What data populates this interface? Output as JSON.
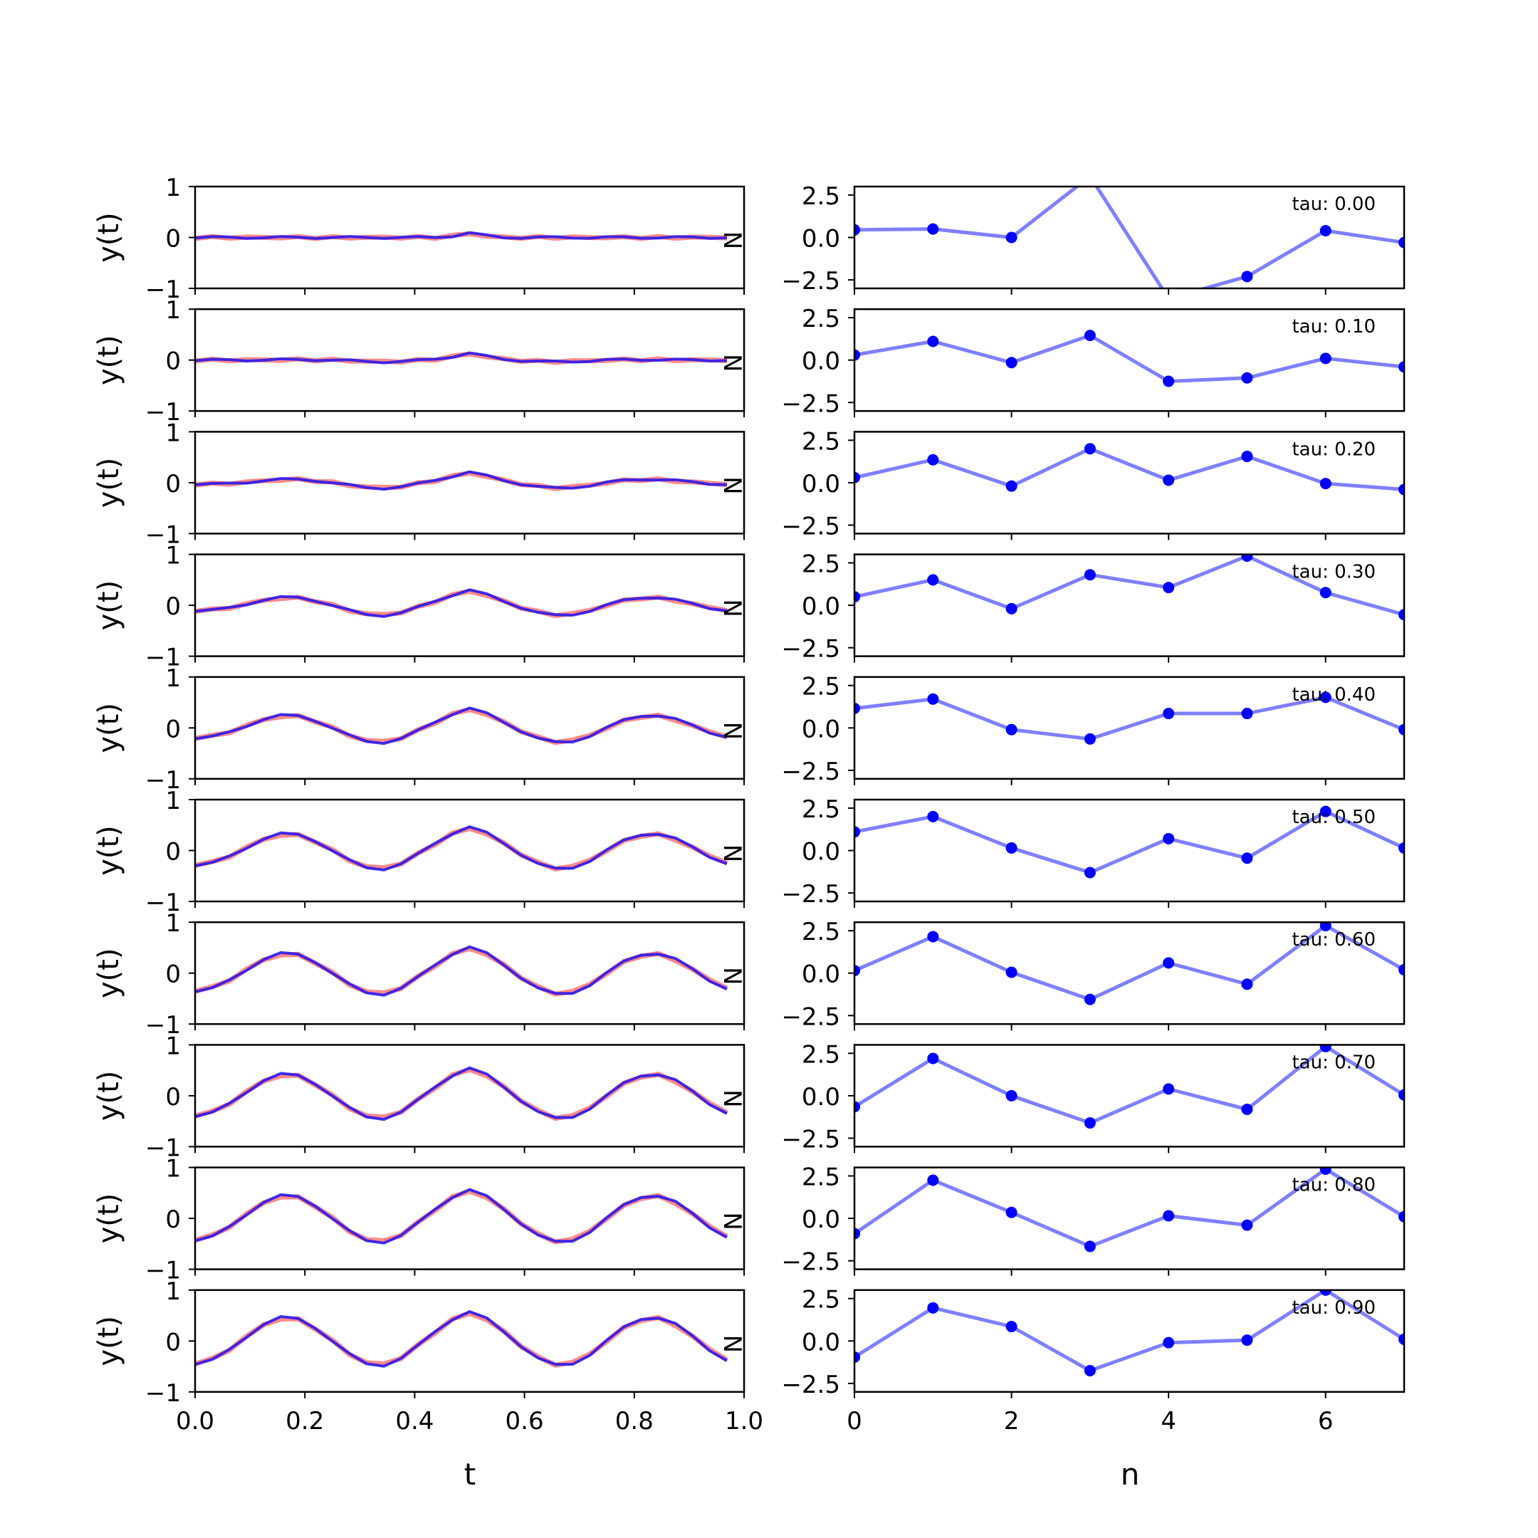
{
  "colors": {
    "red": "#ff7777",
    "blue": "#0000ff",
    "purple": "#7a0f9b",
    "points": "#0000ff",
    "points_line": "#7f7fff"
  },
  "left_column": {
    "xlabel": "t",
    "ylabel": "y(t)",
    "ytick_labels": [
      "1",
      "0",
      "−1"
    ],
    "xtick_labels": [
      "0.0",
      "0.2",
      "0.4",
      "0.6",
      "0.8",
      "1.0"
    ],
    "end_label": "N"
  },
  "right_column": {
    "xlabel": "n",
    "ytick_labels": [
      "2.5",
      "0.0",
      "−2.5"
    ],
    "xtick_labels": [
      "0",
      "2",
      "4",
      "6"
    ]
  },
  "chart_data": [
    {
      "type": "line",
      "panel": "signal",
      "xlim": [
        0,
        1
      ],
      "ylim": [
        -1,
        1
      ],
      "xticks": [
        0,
        0.2,
        0.4,
        0.6,
        0.8,
        1.0
      ],
      "yticks": [
        1,
        0,
        -1
      ],
      "x": [
        0,
        0.0312,
        0.0625,
        0.0938,
        0.125,
        0.1562,
        0.1875,
        0.2188,
        0.25,
        0.2812,
        0.3125,
        0.3438,
        0.375,
        0.4062,
        0.4375,
        0.4688,
        0.5,
        0.5312,
        0.5625,
        0.5938,
        0.625,
        0.6562,
        0.6875,
        0.7188,
        0.75,
        0.7812,
        0.8125,
        0.8438,
        0.875,
        0.9062,
        0.9375,
        0.9688
      ],
      "series": [
        {
          "role": "red",
          "taus": [
            0.0,
            0.1,
            0.2,
            0.3,
            0.4,
            0.5,
            0.6,
            0.7,
            0.8,
            0.9
          ],
          "amplitudes": [
            0.0,
            0.09,
            0.18,
            0.26,
            0.31,
            0.36,
            0.41,
            0.44,
            0.46,
            0.47
          ]
        },
        {
          "role": "blue",
          "taus": [
            0.0,
            0.1,
            0.2,
            0.3,
            0.4,
            0.5,
            0.6,
            0.7,
            0.8,
            0.9
          ],
          "amplitudes": [
            0.02,
            0.11,
            0.2,
            0.28,
            0.33,
            0.38,
            0.43,
            0.46,
            0.48,
            0.49
          ]
        }
      ]
    },
    {
      "type": "line",
      "panel": "coefficients",
      "x": [
        0,
        1,
        2,
        3,
        4,
        5,
        6,
        7
      ],
      "xlim": [
        0,
        7
      ],
      "ylim": [
        -3,
        3
      ],
      "xticks": [
        0,
        2,
        4,
        6
      ],
      "yticks": [
        2.5,
        0,
        -2.5
      ],
      "series": [
        {
          "name": "tau: 0.00",
          "values": [
            0.45,
            0.5,
            0.0,
            3.6,
            -3.6,
            -2.3,
            0.4,
            -0.3
          ]
        },
        {
          "name": "tau: 0.10",
          "values": [
            0.3,
            1.1,
            -0.15,
            1.45,
            -1.25,
            -1.05,
            0.1,
            -0.4
          ]
        },
        {
          "name": "tau: 0.20",
          "values": [
            0.3,
            1.35,
            -0.2,
            2.0,
            0.15,
            1.55,
            -0.05,
            -0.4
          ]
        },
        {
          "name": "tau: 0.30",
          "values": [
            0.5,
            1.5,
            -0.2,
            1.8,
            1.05,
            2.9,
            0.75,
            -0.55
          ]
        },
        {
          "name": "tau: 0.40",
          "values": [
            1.15,
            1.7,
            -0.1,
            -0.65,
            0.85,
            0.85,
            1.8,
            -0.1
          ]
        },
        {
          "name": "tau: 0.50",
          "values": [
            1.1,
            2.0,
            0.15,
            -1.3,
            0.7,
            -0.45,
            2.3,
            0.15
          ]
        },
        {
          "name": "tau: 0.60",
          "values": [
            0.15,
            2.15,
            0.05,
            -1.55,
            0.6,
            -0.65,
            2.8,
            0.2
          ]
        },
        {
          "name": "tau: 0.70",
          "values": [
            -0.65,
            2.2,
            0.0,
            -1.6,
            0.4,
            -0.8,
            2.9,
            0.05
          ]
        },
        {
          "name": "tau: 0.80",
          "values": [
            -0.9,
            2.25,
            0.35,
            -1.65,
            0.15,
            -0.4,
            2.9,
            0.1
          ]
        },
        {
          "name": "tau: 0.90",
          "values": [
            -0.95,
            1.95,
            0.85,
            -1.75,
            -0.1,
            0.05,
            3.0,
            0.1
          ]
        }
      ]
    }
  ]
}
